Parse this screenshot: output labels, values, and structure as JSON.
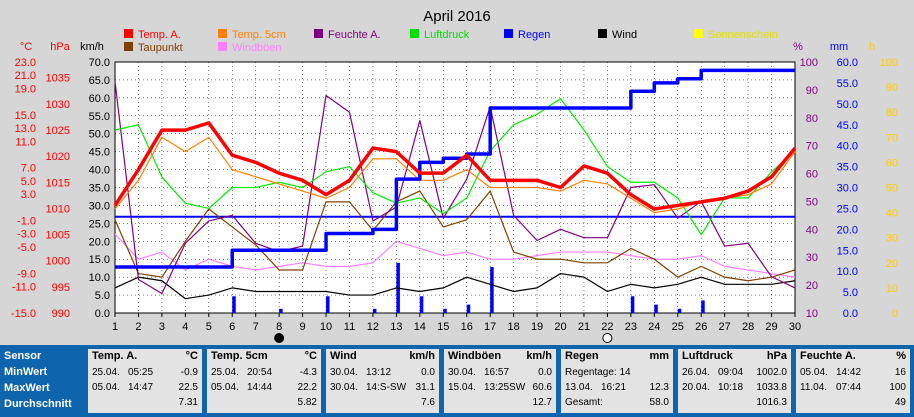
{
  "chart_data": {
    "type": "line",
    "title": "April 2016",
    "x": [
      1,
      2,
      3,
      4,
      5,
      6,
      7,
      8,
      9,
      10,
      11,
      12,
      13,
      14,
      15,
      16,
      17,
      18,
      19,
      20,
      21,
      22,
      23,
      24,
      25,
      26,
      27,
      28,
      29,
      30
    ],
    "xlim": [
      1,
      30
    ],
    "markers": [
      "8",
      "22"
    ],
    "axes": {
      "temp": {
        "label": "°C",
        "ticks": [
          "23.0",
          "21.0",
          "19.0",
          "15.0",
          "13.0",
          "11.0",
          "7.0",
          "5.0",
          "3.0",
          "-1.0",
          "-3.0",
          "-5.0",
          "-9.0",
          "-11.0",
          "-15.0"
        ],
        "ylim": [
          -15,
          23
        ],
        "color": "#ff0000"
      },
      "hpa": {
        "label": "hPa",
        "ticks": [
          "1035",
          "1030",
          "1025",
          "1020",
          "1015",
          "1010",
          "1005",
          "1000",
          "995",
          "990"
        ],
        "ylim": [
          990,
          1038
        ],
        "color": "#ff0000"
      },
      "kmh": {
        "label": "km/h",
        "ticks": [
          "70.0",
          "65.0",
          "60.0",
          "55.0",
          "50.0",
          "45.0",
          "40.0",
          "35.0",
          "30.0",
          "25.0",
          "20.0",
          "15.0",
          "10.0",
          "5.0",
          "0.0"
        ],
        "ylim": [
          0,
          70
        ],
        "color": "#000000"
      },
      "pct": {
        "label": "%",
        "ticks": [
          "100",
          "90",
          "80",
          "70",
          "60",
          "50",
          "40",
          "30",
          "20",
          "10"
        ],
        "ylim": [
          10,
          100
        ],
        "color": "#7f007f"
      },
      "mm": {
        "label": "mm",
        "ticks": [
          "60.0",
          "55.0",
          "50.0",
          "45.0",
          "40.0",
          "35.0",
          "30.0",
          "25.0",
          "20.0",
          "15.0",
          "10.0",
          "5.0",
          "0.0"
        ],
        "ylim": [
          0,
          60
        ],
        "color": "#0000ff"
      },
      "h": {
        "label": "h",
        "ticks": [
          "100",
          "90",
          "80",
          "70",
          "60",
          "50",
          "40",
          "30",
          "20",
          "10",
          "0"
        ],
        "ylim": [
          0,
          100
        ],
        "color": "#ffcc00"
      }
    },
    "legend": [
      {
        "name": "Temp. A.",
        "color": "#ff0000"
      },
      {
        "name": "Temp. 5cm",
        "color": "#ff8000"
      },
      {
        "name": "Feuchte A.",
        "color": "#7f007f"
      },
      {
        "name": "Luftdruck",
        "color": "#00dd00"
      },
      {
        "name": "Regen",
        "color": "#0000ff"
      },
      {
        "name": "Wind",
        "color": "#000000"
      },
      {
        "name": "Sonnenschein",
        "color": "#ffff00"
      },
      {
        "name": "Taupunkt",
        "color": "#804000"
      },
      {
        "name": "Windböen",
        "color": "#ff80ff"
      }
    ],
    "series": {
      "temp_a": {
        "axis": "kmh",
        "color": "#ff0000",
        "width": 3.5,
        "values": [
          30,
          40,
          51,
          51,
          53,
          44,
          42,
          39,
          37,
          33,
          37,
          46,
          45,
          39,
          39,
          44,
          37,
          37,
          37,
          35,
          41,
          39,
          33,
          29,
          30,
          31,
          32,
          34,
          38,
          46
        ]
      },
      "temp_5cm": {
        "axis": "kmh",
        "color": "#ff8000",
        "width": 1.2,
        "values": [
          29,
          37,
          49,
          45,
          49,
          40,
          38,
          36,
          34,
          32,
          35,
          43,
          43,
          37,
          37,
          40,
          35,
          35,
          35,
          34,
          37,
          36,
          32,
          28,
          29,
          31,
          32,
          33,
          36,
          45
        ]
      },
      "taupunkt": {
        "axis": "kmh",
        "color": "#804000",
        "width": 1.2,
        "values": [
          26,
          11,
          10,
          20,
          29,
          24,
          19,
          12,
          12,
          31,
          31,
          23,
          31,
          34,
          24,
          26,
          34,
          17,
          15,
          15,
          14,
          14,
          18,
          15,
          10,
          13,
          10,
          9,
          10,
          12
        ]
      },
      "windboeen": {
        "axis": "kmh",
        "color": "#ff80ff",
        "width": 1.2,
        "values": [
          22,
          15,
          17,
          12,
          15,
          13,
          12,
          13,
          14,
          13,
          13,
          14,
          20,
          18,
          16,
          17,
          15,
          15,
          16,
          17,
          17,
          17,
          16,
          15,
          15,
          16,
          13,
          12,
          11,
          10
        ]
      },
      "wind": {
        "axis": "kmh",
        "color": "#000000",
        "width": 1.2,
        "values": [
          7,
          10,
          9,
          4,
          5,
          7,
          6,
          6,
          6,
          6,
          5,
          5,
          7,
          6,
          7,
          10,
          8,
          6,
          7,
          11,
          10,
          6,
          8,
          7,
          8,
          10,
          8,
          8,
          8,
          9
        ]
      },
      "feuchte": {
        "axis": "pct",
        "color": "#7f007f",
        "width": 1.2,
        "values": [
          93,
          22,
          17,
          35,
          43,
          45,
          35,
          32,
          34,
          88,
          82,
          43,
          48,
          79,
          44,
          58,
          84,
          45,
          36,
          40,
          37,
          37,
          55,
          56,
          44,
          50,
          34,
          35,
          23,
          19
        ]
      },
      "luftdruck": {
        "axis": "hpa",
        "color": "#00ee00",
        "width": 1.2,
        "values": [
          1025,
          1026,
          1016,
          1011,
          1010,
          1014,
          1014,
          1015,
          1014,
          1017,
          1018,
          1013,
          1011,
          1012,
          1009,
          1012,
          1021,
          1026,
          1028,
          1031,
          1025,
          1018,
          1015,
          1015,
          1012,
          1005,
          1012,
          1012,
          1017,
          1021
        ]
      },
      "regen": {
        "axis": "mm",
        "color": "#0000ff",
        "width": 3.5,
        "values": [
          11,
          11,
          11,
          11,
          11,
          15,
          15,
          15,
          15,
          19,
          19,
          20,
          32,
          36,
          37,
          38,
          49,
          49,
          49,
          49,
          49,
          49,
          53,
          55,
          56,
          58,
          58,
          58,
          58,
          58
        ]
      }
    },
    "rain_avg_mm": 23,
    "rain_bars_mm": [
      0,
      0,
      0,
      0,
      0,
      4,
      0,
      1,
      0,
      4,
      0,
      1,
      12,
      4,
      1,
      2,
      11,
      0,
      0,
      0,
      0,
      0,
      4,
      2,
      1,
      3,
      0,
      0,
      0,
      0
    ]
  },
  "stats": {
    "labels": [
      "Sensor",
      "MinWert",
      "MaxWert",
      "Durchschnitt"
    ],
    "blocks": [
      {
        "name": "Temp. A.",
        "unit": "°C",
        "min": [
          "25.04.",
          "05:25",
          "-0.9"
        ],
        "max": [
          "05.04.",
          "14:47",
          "22.5"
        ],
        "avg": "7.31"
      },
      {
        "name": "Temp. 5cm",
        "unit": "°C",
        "min": [
          "25.04.",
          "20:54",
          "-4.3"
        ],
        "max": [
          "05.04.",
          "14:44",
          "22.2"
        ],
        "avg": "5.82"
      },
      {
        "name": "Wind",
        "unit": "km/h",
        "min": [
          "30.04.",
          "13:12",
          "0.0"
        ],
        "max": [
          "30.04.",
          "14:S-SW",
          "31.1"
        ],
        "avg": "7.6"
      },
      {
        "name": "Windböen",
        "unit": "km/h",
        "min": [
          "30.04.",
          "16:57",
          "0.0"
        ],
        "max": [
          "15.04.",
          "13:25SW",
          "60.6"
        ],
        "avg": "12.7"
      },
      {
        "name": "Regen",
        "unit": "mm",
        "min": [
          "Regentage: 14",
          "",
          ""
        ],
        "max": [
          "13.04.",
          "16:21",
          "12.3"
        ],
        "avg_label": "Gesamt:",
        "avg": "58.0"
      },
      {
        "name": "Luftdruck",
        "unit": "hPa",
        "min": [
          "26.04.",
          "09:04",
          "1002.0"
        ],
        "max": [
          "20.04.",
          "10:18",
          "1033.8"
        ],
        "avg": "1016.3"
      },
      {
        "name": "Feuchte A.",
        "unit": "%",
        "min": [
          "05.04.",
          "14:42",
          "16"
        ],
        "max": [
          "11.04.",
          "07:44",
          "100"
        ],
        "avg": "49"
      }
    ]
  }
}
